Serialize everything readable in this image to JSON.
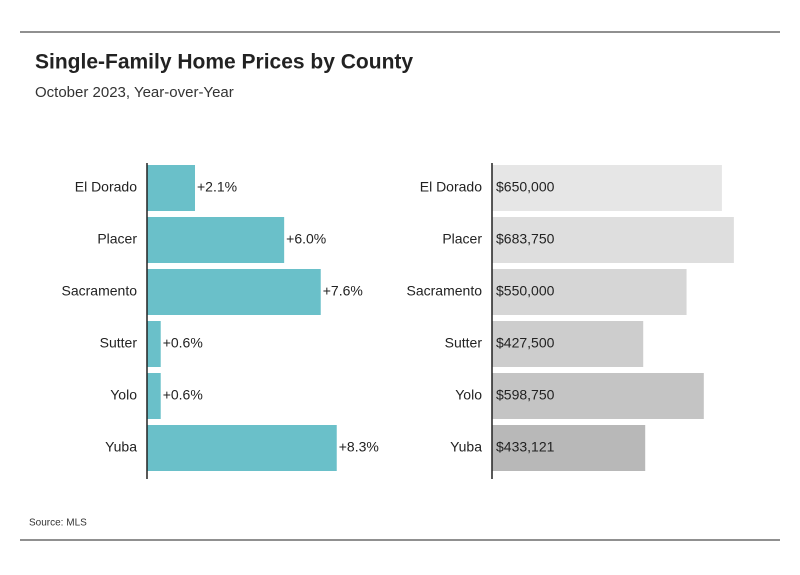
{
  "title": "Single-Family Home Prices by County",
  "subtitle": "October 2023, Year-over-Year",
  "source": "Source: MLS",
  "chart_data": [
    {
      "type": "bar",
      "orientation": "horizontal",
      "categories": [
        "El Dorado",
        "Placer",
        "Sacramento",
        "Sutter",
        "Yolo",
        "Yuba"
      ],
      "values": [
        2.1,
        6.0,
        7.6,
        0.6,
        0.6,
        8.3
      ],
      "value_labels": [
        "+2.1%",
        "+6.0%",
        "+7.6%",
        "+0.6%",
        "+0.6%",
        "+8.3%"
      ],
      "color": "#6ac0c9",
      "xlim": [
        0,
        10
      ]
    },
    {
      "type": "bar",
      "orientation": "horizontal",
      "categories": [
        "El Dorado",
        "Placer",
        "Sacramento",
        "Sutter",
        "Yolo",
        "Yuba"
      ],
      "values": [
        650000,
        683750,
        550000,
        427500,
        598750,
        433121
      ],
      "value_labels": [
        "$650,000",
        "$683,750",
        "$550,000",
        "$427,500",
        "$598,750",
        "$433,121"
      ],
      "colors": [
        "#e6e6e6",
        "#dedede",
        "#d6d6d6",
        "#cdcdcd",
        "#c4c4c4",
        "#b8b8b8"
      ],
      "xlim": [
        0,
        800000
      ]
    }
  ]
}
